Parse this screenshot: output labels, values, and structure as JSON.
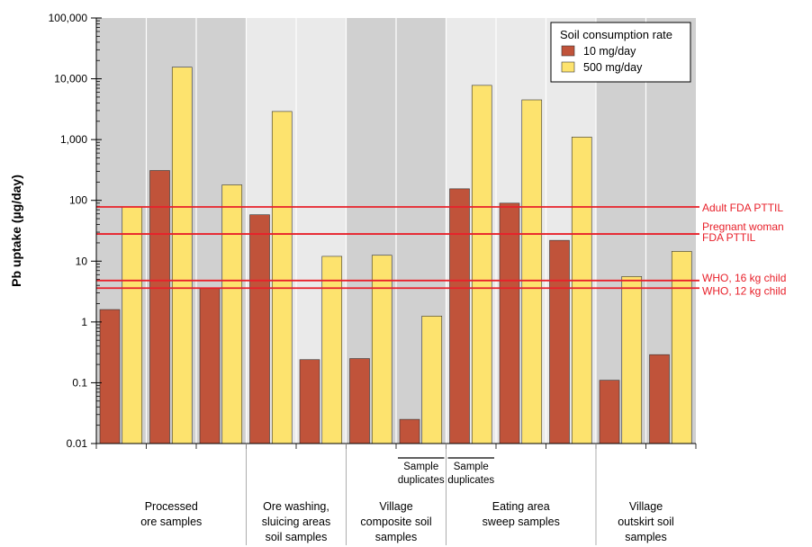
{
  "chart_data": {
    "type": "bar",
    "ylabel": "Pb uptake (µg/day)",
    "yscale": "log",
    "ylim": [
      0.01,
      100000
    ],
    "y_tick_labels": [
      "0.01",
      "0.1",
      "1",
      "10",
      "100",
      "1,000",
      "10,000",
      "100,000"
    ],
    "y_tick_values": [
      0.01,
      0.1,
      1,
      10,
      100,
      1000,
      10000,
      100000
    ],
    "grid": false,
    "legend": {
      "title": "Soil consumption rate",
      "position": "top-right",
      "entries": [
        "10 mg/day",
        "500 mg/day"
      ]
    },
    "series": [
      {
        "name": "10 mg/day",
        "color": "#c0533a",
        "values": [
          1.6,
          310,
          3.6,
          58,
          0.24,
          0.25,
          0.025,
          155,
          90,
          22,
          0.11,
          0.29
        ]
      },
      {
        "name": "500 mg/day",
        "color": "#fde36e",
        "values": [
          78,
          15500,
          180,
          2900,
          12,
          12.5,
          1.25,
          7800,
          4500,
          1100,
          5.6,
          14.5
        ]
      }
    ],
    "groups": [
      {
        "label": [
          "Processed",
          "ore samples"
        ],
        "start": 0,
        "end": 3,
        "background": "#d0d0d0"
      },
      {
        "label": [
          "Ore washing,",
          "sluicing areas",
          "soil samples"
        ],
        "start": 3,
        "end": 5,
        "background": "#eaeaea"
      },
      {
        "label": [
          "Village",
          "composite soil",
          "samples"
        ],
        "start": 5,
        "end": 7,
        "background": "#d0d0d0"
      },
      {
        "label": [
          "Eating area",
          "sweep samples"
        ],
        "start": 7,
        "end": 10,
        "background": "#eaeaea"
      },
      {
        "label": [
          "Village",
          "outskirt soil",
          "samples"
        ],
        "start": 10,
        "end": 12,
        "background": "#d0d0d0"
      }
    ],
    "sample_duplicates": [
      {
        "label": [
          "Sample",
          "duplicates"
        ],
        "start": 6,
        "end": 7
      },
      {
        "label": [
          "Sample",
          "duplicates"
        ],
        "start": 7,
        "end": 8
      }
    ],
    "reference_lines": [
      {
        "value": 78,
        "label": [
          "Adult FDA PTTIL"
        ]
      },
      {
        "value": 28,
        "label": [
          "Pregnant woman",
          "FDA PTTIL"
        ]
      },
      {
        "value": 4.8,
        "label": [
          "WHO, 16 kg child"
        ]
      },
      {
        "value": 3.6,
        "label": [
          "WHO, 12 kg child"
        ]
      }
    ],
    "reference_line_color": "#e8202a"
  }
}
